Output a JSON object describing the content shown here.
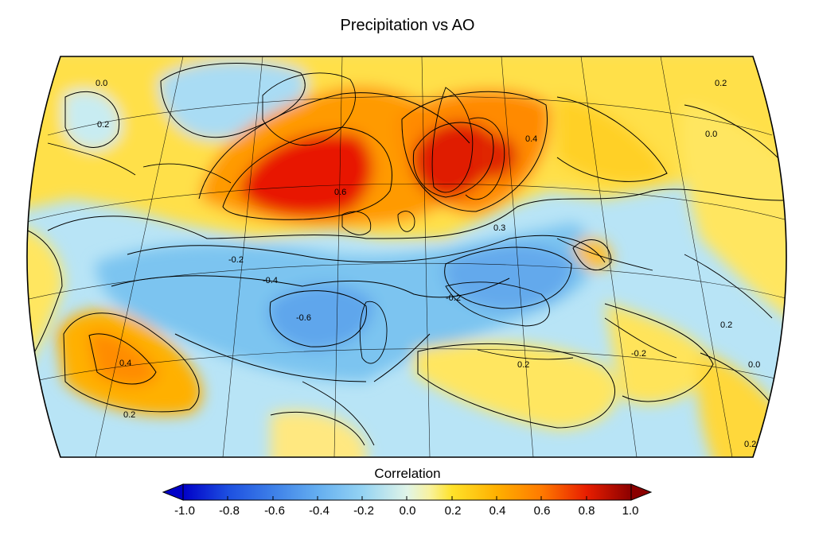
{
  "title": "Precipitation  vs AO",
  "colorbar": {
    "label": "Correlation",
    "ticks": [
      "-1.0",
      "-0.8",
      "-0.6",
      "-0.4",
      "-0.2",
      "0.0",
      "0.2",
      "0.4",
      "0.6",
      "0.8",
      "1.0"
    ],
    "colors": [
      "#0000c8",
      "#1d4fe0",
      "#3d7fe8",
      "#64aef0",
      "#94d3f3",
      "#c4ecf4",
      "#f4f6a0",
      "#ffe22a",
      "#ffb000",
      "#ff7a00",
      "#f03c00",
      "#cc0000",
      "#8b0000"
    ]
  },
  "contour_labels": [
    "0.0",
    "0.2",
    "-0.2",
    "0.4",
    "0.6",
    "-0.4",
    "-0.6",
    "0.3",
    "0.2",
    "-0.2",
    "0.0",
    "0.2",
    "0.4",
    "0.2",
    "0.0",
    "-0.2",
    "0.2",
    "0.2"
  ]
}
